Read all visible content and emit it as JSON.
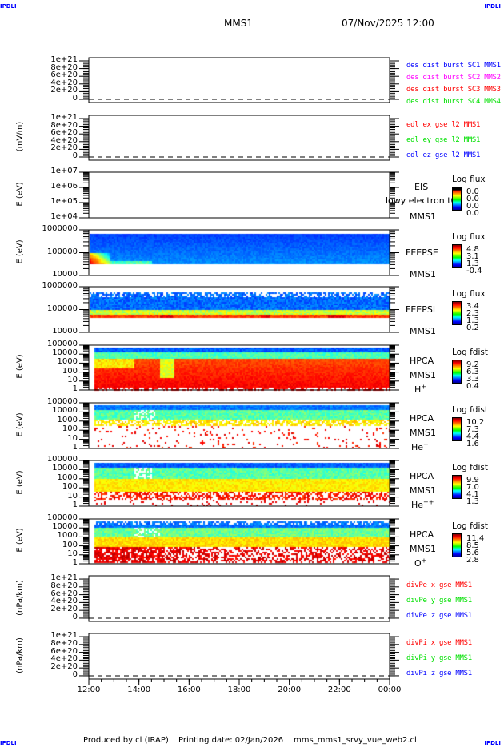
{
  "header": {
    "corner_left_top": "IPDLI",
    "corner_right_top": "IPDLI",
    "corner_left_bottom": "IPDLI",
    "corner_right_bottom": "IPDLI",
    "title": "MMS1",
    "datetime": "07/Nov/2025 12:00"
  },
  "footer": {
    "produced": "Produced by cl (IRAP)",
    "printing_date": "Printing date: 02/Jan/2026",
    "script": "mms_mms1_srvy_vue_web2.cl"
  },
  "chart_data": {
    "type": "heatmap",
    "x_axis": {
      "range": [
        "07/Nov/2025 12:00",
        "08/Nov/2025 00:00"
      ],
      "tick_labels": [
        "12:00",
        "14:00",
        "16:00",
        "18:00",
        "20:00",
        "22:00",
        "00:00"
      ]
    },
    "colors": {
      "accent_blue": "#0000ff",
      "red": "#ff0000",
      "green": "#00ff00",
      "magenta": "#ff00ff",
      "colormap": "jet"
    },
    "panels": [
      {
        "kind": "line",
        "ylabel": "",
        "scale": "linear",
        "ylim": [
          -8.3e+19,
          1.083e+21
        ],
        "tick_labels": [
          "1e+21",
          "8e+20",
          "6e+20",
          "4e+20",
          "2e+20",
          "0"
        ],
        "tick_values": [
          1e+21,
          8e+20,
          6e+20,
          4e+20,
          2e+20,
          0
        ],
        "zero_line": "dashed",
        "legend": [
          {
            "text": "des dist burst SC1 MMS1",
            "color": "#0000ff"
          },
          {
            "text": "des dist burst SC2 MMS2",
            "color": "#ff00ff"
          },
          {
            "text": "des dist burst SC3 MMS3",
            "color": "#ff0000"
          },
          {
            "text": "des dist burst SC4 MMS4",
            "color": "#00e000"
          }
        ]
      },
      {
        "kind": "line",
        "ylabel": "(mV/m)",
        "scale": "linear",
        "ylim": [
          -8.3e+19,
          1.083e+21
        ],
        "tick_labels": [
          "1e+21",
          "8e+20",
          "6e+20",
          "4e+20",
          "2e+20",
          "0"
        ],
        "tick_values": [
          1e+21,
          8e+20,
          6e+20,
          4e+20,
          2e+20,
          0
        ],
        "zero_line": "dashed",
        "legend": [
          {
            "text": "edl ex gse l2 MMS1",
            "color": "#ff0000"
          },
          {
            "text": "edl ey gse l2 MMS1",
            "color": "#00e000"
          },
          {
            "text": "edl ez gse l2 MMS1",
            "color": "#0000ff"
          }
        ]
      },
      {
        "kind": "spec",
        "model": "empty",
        "ylabel": "E (eV)",
        "scale": "log",
        "ylim": [
          10000.0,
          10000000.0
        ],
        "tick_labels": [
          "1e+07",
          "1e+06",
          "1e+05",
          "1e+04"
        ],
        "tick_values": [
          10000000.0,
          1000000.0,
          100000.0,
          10000.0
        ],
        "labels": [
          "EIS",
          "lowy electron t0",
          "MMS1"
        ],
        "colorbar": {
          "title": "Log flux",
          "labels": [
            "0.0",
            "0.0",
            "0.0",
            "0.0"
          ],
          "black_top": true
        }
      },
      {
        "kind": "spec",
        "model": "feepse",
        "ylabel": "E (eV)",
        "scale": "log",
        "ylim": [
          10000.0,
          1000000.0
        ],
        "tick_labels": [
          "1000000",
          "100000",
          "10000"
        ],
        "tick_values": [
          1000000.0,
          100000.0,
          10000.0
        ],
        "labels": [
          "FEEPSE",
          "MMS1"
        ],
        "colorbar": {
          "title": "Log flux",
          "labels": [
            "4.8",
            "3.1",
            "1.3",
            "-0.4"
          ]
        }
      },
      {
        "kind": "spec",
        "model": "feepsi",
        "ylabel": "",
        "scale": "log",
        "ylim": [
          10000.0,
          1000000.0
        ],
        "tick_labels": [
          "1000000",
          "100000",
          "10000"
        ],
        "tick_values": [
          1000000.0,
          100000.0,
          10000.0
        ],
        "labels": [
          "FEEPSI",
          "MMS1"
        ],
        "colorbar": {
          "title": "Log flux",
          "labels": [
            "3.4",
            "2.3",
            "1.3",
            "0.2"
          ]
        }
      },
      {
        "kind": "spec",
        "model": "hplus",
        "ylabel": "E (eV)",
        "scale": "log",
        "ylim": [
          1,
          100000.0
        ],
        "tick_labels": [
          "100000",
          "10000",
          "1000",
          "100",
          "10",
          "1"
        ],
        "tick_values": [
          100000.0,
          10000.0,
          1000.0,
          100,
          10,
          1
        ],
        "labels": [
          "HPCA",
          "MMS1"
        ],
        "species": {
          "base": "H",
          "sup": "+"
        },
        "colorbar": {
          "title": "Log fdist",
          "labels": [
            "9.2",
            "6.3",
            "3.3",
            "0.4"
          ]
        }
      },
      {
        "kind": "spec",
        "model": "heplus",
        "ylabel": "E (eV)",
        "scale": "log",
        "ylim": [
          1,
          100000.0
        ],
        "tick_labels": [
          "100000",
          "10000",
          "1000",
          "100",
          "10",
          "1"
        ],
        "tick_values": [
          100000.0,
          10000.0,
          1000.0,
          100,
          10,
          1
        ],
        "labels": [
          "HPCA",
          "MMS1"
        ],
        "species": {
          "base": "He",
          "sup": "+"
        },
        "colorbar": {
          "title": "Log fdist",
          "labels": [
            "10.2",
            "7.3",
            "4.4",
            "1.6"
          ]
        }
      },
      {
        "kind": "spec",
        "model": "hepp",
        "ylabel": "E (eV)",
        "scale": "log",
        "ylim": [
          1,
          100000.0
        ],
        "tick_labels": [
          "100000",
          "10000",
          "1000",
          "100",
          "10",
          "1"
        ],
        "tick_values": [
          100000.0,
          10000.0,
          1000.0,
          100,
          10,
          1
        ],
        "labels": [
          "HPCA",
          "MMS1"
        ],
        "species": {
          "base": "He",
          "sup": "++"
        },
        "colorbar": {
          "title": "Log fdist",
          "labels": [
            "9.9",
            "7.0",
            "4.1",
            "1.3"
          ]
        }
      },
      {
        "kind": "spec",
        "model": "oplus",
        "ylabel": "E (eV)",
        "scale": "log",
        "ylim": [
          1,
          100000.0
        ],
        "tick_labels": [
          "100000",
          "10000",
          "1000",
          "100",
          "10",
          "1"
        ],
        "tick_values": [
          100000.0,
          10000.0,
          1000.0,
          100,
          10,
          1
        ],
        "labels": [
          "HPCA",
          "MMS1"
        ],
        "species": {
          "base": "O",
          "sup": "+"
        },
        "colorbar": {
          "title": "Log fdist",
          "labels": [
            "11.4",
            "8.5",
            "5.6",
            "2.8"
          ]
        }
      },
      {
        "kind": "line",
        "ylabel": "(nPa/km)",
        "scale": "linear",
        "ylim": [
          -8.3e+19,
          1.083e+21
        ],
        "tick_labels": [
          "1e+21",
          "8e+20",
          "6e+20",
          "4e+20",
          "2e+20",
          "0"
        ],
        "tick_values": [
          1e+21,
          8e+20,
          6e+20,
          4e+20,
          2e+20,
          0
        ],
        "zero_line": "dashed",
        "legend": [
          {
            "text": "divPe x gse MMS1",
            "color": "#ff0000"
          },
          {
            "text": "divPe y gse MMS1",
            "color": "#00e000"
          },
          {
            "text": "divPe z gse MMS1",
            "color": "#0000ff"
          }
        ]
      },
      {
        "kind": "line",
        "ylabel": "(nPa/km)",
        "scale": "linear",
        "ylim": [
          -8.3e+19,
          1.083e+21
        ],
        "tick_labels": [
          "1e+21",
          "8e+20",
          "6e+20",
          "4e+20",
          "2e+20",
          "0"
        ],
        "tick_values": [
          1e+21,
          8e+20,
          6e+20,
          4e+20,
          2e+20,
          0
        ],
        "zero_line": "dashed",
        "legend": [
          {
            "text": "divPi x gse MMS1",
            "color": "#ff0000"
          },
          {
            "text": "divPi y gse MMS1",
            "color": "#00e000"
          },
          {
            "text": "divPi z gse MMS1",
            "color": "#0000ff"
          }
        ]
      }
    ]
  }
}
